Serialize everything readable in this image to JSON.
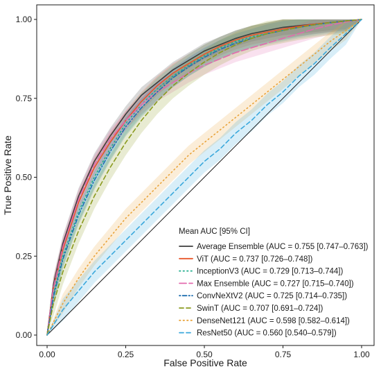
{
  "chart_data": {
    "type": "line",
    "xlabel": "False Positive Rate",
    "ylabel": "True Positive Rate",
    "xlim": [
      0,
      1
    ],
    "ylim": [
      0,
      1
    ],
    "x_ticks": [
      "0.00",
      "0.25",
      "0.50",
      "0.75",
      "1.00"
    ],
    "y_ticks": [
      "0.00",
      "0.25",
      "0.50",
      "0.75",
      "1.00"
    ],
    "grid": false,
    "diagonal_reference": true,
    "legend": {
      "title": "Mean AUC [95% CI]",
      "placement": "bottom-right"
    },
    "series": [
      {
        "name": "Average Ensemble (AUC = 0.755 [0.747–0.763])",
        "color": "#3d3d3d",
        "dash": "solid",
        "x": [
          0,
          0.02,
          0.05,
          0.1,
          0.15,
          0.2,
          0.25,
          0.3,
          0.35,
          0.4,
          0.45,
          0.5,
          0.55,
          0.6,
          0.65,
          0.7,
          0.75,
          0.8,
          0.85,
          0.9,
          0.95,
          1.0
        ],
        "y": [
          0,
          0.16,
          0.29,
          0.44,
          0.55,
          0.63,
          0.7,
          0.76,
          0.8,
          0.84,
          0.87,
          0.9,
          0.92,
          0.94,
          0.955,
          0.965,
          0.975,
          0.98,
          0.985,
          0.99,
          0.995,
          1.0
        ],
        "band": 0.025
      },
      {
        "name": "ViT (AUC = 0.737 [0.726–0.748])",
        "color": "#e8562a",
        "dash": "solid",
        "x": [
          0,
          0.02,
          0.05,
          0.1,
          0.15,
          0.2,
          0.25,
          0.3,
          0.35,
          0.4,
          0.45,
          0.5,
          0.55,
          0.6,
          0.65,
          0.7,
          0.75,
          0.8,
          0.85,
          0.9,
          0.95,
          1.0
        ],
        "y": [
          0,
          0.15,
          0.27,
          0.42,
          0.53,
          0.61,
          0.68,
          0.74,
          0.79,
          0.83,
          0.86,
          0.89,
          0.915,
          0.935,
          0.95,
          0.96,
          0.97,
          0.978,
          0.985,
          0.99,
          0.995,
          1.0
        ],
        "band": 0.03
      },
      {
        "name": "InceptionV3 (AUC = 0.729 [0.713–0.744])",
        "color": "#1fad8c",
        "dash": "dotted",
        "x": [
          0,
          0.02,
          0.05,
          0.1,
          0.15,
          0.2,
          0.25,
          0.3,
          0.35,
          0.4,
          0.45,
          0.5,
          0.55,
          0.6,
          0.65,
          0.7,
          0.75,
          0.8,
          0.85,
          0.9,
          0.95,
          1.0
        ],
        "y": [
          0,
          0.13,
          0.25,
          0.39,
          0.5,
          0.59,
          0.67,
          0.73,
          0.78,
          0.82,
          0.855,
          0.885,
          0.91,
          0.93,
          0.945,
          0.955,
          0.965,
          0.975,
          0.983,
          0.99,
          0.995,
          1.0
        ],
        "band": 0.035
      },
      {
        "name": "Max Ensemble (AUC = 0.727 [0.715–0.740])",
        "color": "#e36aae",
        "dash": "longdash",
        "x": [
          0,
          0.02,
          0.05,
          0.1,
          0.15,
          0.2,
          0.25,
          0.3,
          0.35,
          0.4,
          0.45,
          0.5,
          0.55,
          0.6,
          0.65,
          0.7,
          0.75,
          0.8,
          0.85,
          0.9,
          0.95,
          1.0
        ],
        "y": [
          0,
          0.15,
          0.28,
          0.43,
          0.54,
          0.62,
          0.68,
          0.73,
          0.77,
          0.8,
          0.83,
          0.855,
          0.875,
          0.895,
          0.91,
          0.925,
          0.94,
          0.955,
          0.97,
          0.982,
          0.992,
          1.0
        ],
        "band": 0.03
      },
      {
        "name": "ConvNeXtV2 (AUC = 0.725 [0.714–0.735])",
        "color": "#1f6fb0",
        "dash": "dotdash",
        "x": [
          0,
          0.02,
          0.05,
          0.1,
          0.15,
          0.2,
          0.25,
          0.3,
          0.35,
          0.4,
          0.45,
          0.5,
          0.55,
          0.6,
          0.65,
          0.7,
          0.75,
          0.8,
          0.85,
          0.9,
          0.95,
          1.0
        ],
        "y": [
          0,
          0.12,
          0.24,
          0.38,
          0.49,
          0.58,
          0.66,
          0.72,
          0.77,
          0.815,
          0.85,
          0.88,
          0.905,
          0.925,
          0.94,
          0.955,
          0.965,
          0.975,
          0.983,
          0.99,
          0.995,
          1.0
        ],
        "band": 0.03
      },
      {
        "name": "SwinT (AUC = 0.707 [0.691–0.724])",
        "color": "#8a9a1e",
        "dash": "dashed",
        "x": [
          0,
          0.02,
          0.05,
          0.1,
          0.15,
          0.2,
          0.25,
          0.3,
          0.35,
          0.4,
          0.45,
          0.5,
          0.55,
          0.6,
          0.65,
          0.7,
          0.75,
          0.8,
          0.85,
          0.9,
          0.95,
          1.0
        ],
        "y": [
          0,
          0.1,
          0.2,
          0.33,
          0.44,
          0.53,
          0.61,
          0.68,
          0.74,
          0.79,
          0.83,
          0.865,
          0.895,
          0.92,
          0.94,
          0.955,
          0.965,
          0.975,
          0.983,
          0.99,
          0.995,
          1.0
        ],
        "band": 0.04
      },
      {
        "name": "DenseNet121 (AUC = 0.598 [0.582–0.614])",
        "color": "#e9a33a",
        "dash": "dotted",
        "x": [
          0,
          0.05,
          0.1,
          0.15,
          0.2,
          0.25,
          0.3,
          0.35,
          0.4,
          0.45,
          0.5,
          0.55,
          0.6,
          0.65,
          0.7,
          0.75,
          0.8,
          0.85,
          0.9,
          0.95,
          1.0
        ],
        "y": [
          0,
          0.1,
          0.18,
          0.25,
          0.31,
          0.37,
          0.42,
          0.47,
          0.52,
          0.57,
          0.61,
          0.65,
          0.69,
          0.73,
          0.77,
          0.81,
          0.85,
          0.89,
          0.93,
          0.965,
          1.0
        ],
        "band": 0.03
      },
      {
        "name": "ResNet50 (AUC = 0.560 [0.540–0.579])",
        "color": "#3aa8dc",
        "dash": "dashed",
        "x": [
          0,
          0.05,
          0.1,
          0.15,
          0.2,
          0.25,
          0.3,
          0.35,
          0.4,
          0.45,
          0.5,
          0.55,
          0.6,
          0.65,
          0.7,
          0.75,
          0.8,
          0.85,
          0.9,
          0.95,
          1.0
        ],
        "y": [
          0,
          0.08,
          0.14,
          0.2,
          0.25,
          0.3,
          0.35,
          0.4,
          0.45,
          0.5,
          0.55,
          0.59,
          0.64,
          0.68,
          0.73,
          0.77,
          0.82,
          0.86,
          0.91,
          0.955,
          1.0
        ],
        "band": 0.035
      }
    ]
  }
}
